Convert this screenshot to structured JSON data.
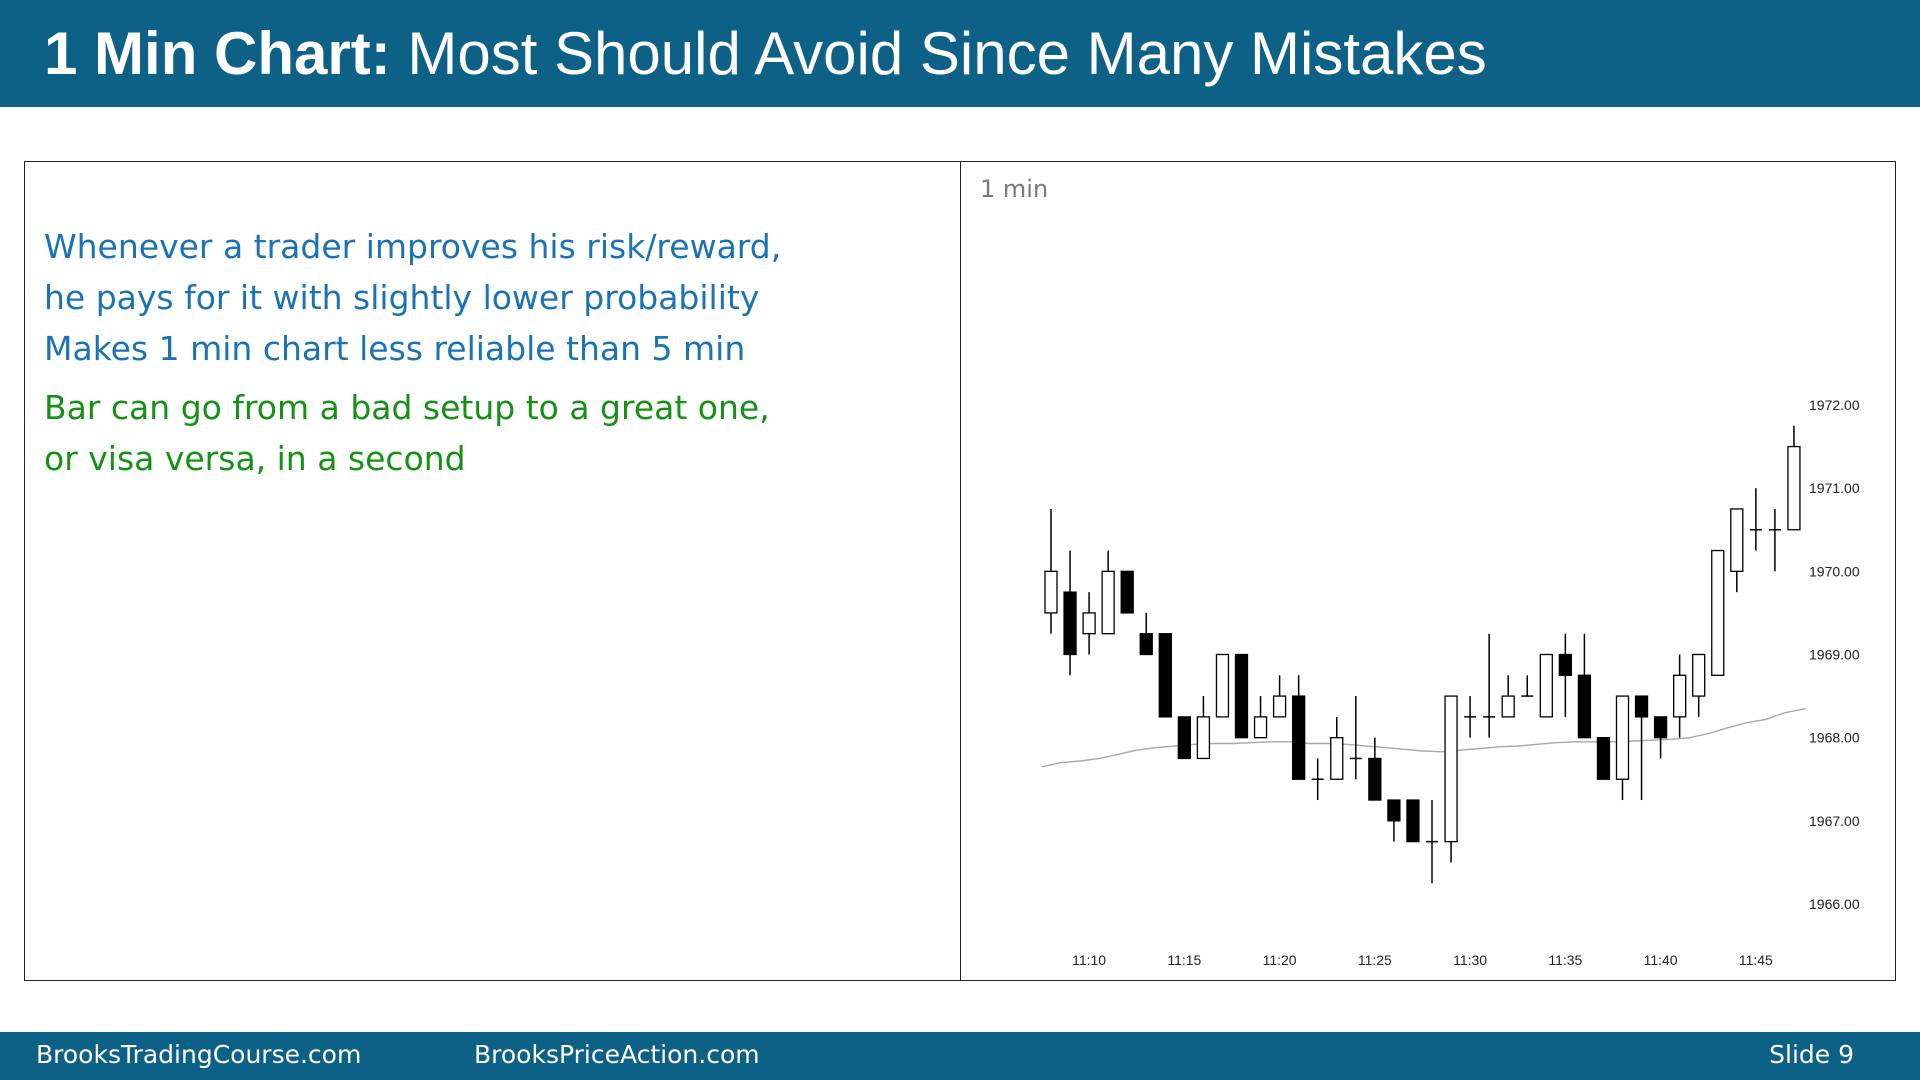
{
  "slide": {
    "title_bold": "1 Min Chart:",
    "title_rest": "Most Should Avoid Since Many Mistakes",
    "blue_lines": [
      "Whenever a trader improves his risk/reward,",
      "he pays for it with slightly lower probability",
      "Makes 1 min chart less reliable than 5 min"
    ],
    "green_lines": [
      "Bar can go from a bad setup to a great one,",
      "or visa versa, in a second"
    ],
    "footer": {
      "site1": "BrooksTradingCourse.com",
      "site2": "BrooksPriceAction.com",
      "slide_number": "Slide  9"
    },
    "colors": {
      "header": "#0e6186",
      "blue_text": "#1a73b4",
      "green_text": "#169116"
    }
  },
  "chart_data": {
    "type": "candlestick",
    "timeframe_label": "1 min",
    "y_ticks": [
      "1966.00",
      "1967.00",
      "1968.00",
      "1969.00",
      "1970.00",
      "1971.00",
      "1972.00"
    ],
    "x_ticks": [
      "11:10",
      "11:15",
      "11:20",
      "11:25",
      "11:30",
      "11:35",
      "11:40",
      "11:45"
    ],
    "ylim": [
      1965.5,
      1972.4
    ],
    "bars": [
      {
        "o": 1969.5,
        "h": 1970.75,
        "l": 1969.25,
        "c": 1970.0
      },
      {
        "o": 1969.75,
        "h": 1970.25,
        "l": 1968.75,
        "c": 1969.0
      },
      {
        "o": 1969.25,
        "h": 1969.75,
        "l": 1969.0,
        "c": 1969.5
      },
      {
        "o": 1969.25,
        "h": 1970.25,
        "l": 1969.25,
        "c": 1970.0
      },
      {
        "o": 1970.0,
        "h": 1970.0,
        "l": 1969.5,
        "c": 1969.5
      },
      {
        "o": 1969.25,
        "h": 1969.5,
        "l": 1969.0,
        "c": 1969.0
      },
      {
        "o": 1969.25,
        "h": 1969.25,
        "l": 1968.25,
        "c": 1968.25
      },
      {
        "o": 1968.25,
        "h": 1968.25,
        "l": 1967.75,
        "c": 1967.75
      },
      {
        "o": 1967.75,
        "h": 1968.5,
        "l": 1967.75,
        "c": 1968.25
      },
      {
        "o": 1968.25,
        "h": 1969.0,
        "l": 1968.25,
        "c": 1969.0
      },
      {
        "o": 1969.0,
        "h": 1969.0,
        "l": 1968.0,
        "c": 1968.0
      },
      {
        "o": 1968.0,
        "h": 1968.5,
        "l": 1968.0,
        "c": 1968.25
      },
      {
        "o": 1968.25,
        "h": 1968.75,
        "l": 1968.25,
        "c": 1968.5
      },
      {
        "o": 1968.5,
        "h": 1968.75,
        "l": 1967.5,
        "c": 1967.5
      },
      {
        "o": 1967.5,
        "h": 1967.75,
        "l": 1967.25,
        "c": 1967.5
      },
      {
        "o": 1967.5,
        "h": 1968.25,
        "l": 1967.5,
        "c": 1968.0
      },
      {
        "o": 1967.75,
        "h": 1968.5,
        "l": 1967.5,
        "c": 1967.75
      },
      {
        "o": 1967.75,
        "h": 1968.0,
        "l": 1967.25,
        "c": 1967.25
      },
      {
        "o": 1967.25,
        "h": 1967.25,
        "l": 1966.75,
        "c": 1967.0
      },
      {
        "o": 1967.25,
        "h": 1967.25,
        "l": 1966.75,
        "c": 1966.75
      },
      {
        "o": 1966.75,
        "h": 1967.25,
        "l": 1966.25,
        "c": 1966.75
      },
      {
        "o": 1966.75,
        "h": 1968.5,
        "l": 1966.5,
        "c": 1968.5
      },
      {
        "o": 1968.25,
        "h": 1968.5,
        "l": 1968.0,
        "c": 1968.25
      },
      {
        "o": 1968.25,
        "h": 1969.25,
        "l": 1968.0,
        "c": 1968.25
      },
      {
        "o": 1968.25,
        "h": 1968.75,
        "l": 1968.25,
        "c": 1968.5
      },
      {
        "o": 1968.5,
        "h": 1968.75,
        "l": 1968.5,
        "c": 1968.5
      },
      {
        "o": 1968.25,
        "h": 1969.0,
        "l": 1968.25,
        "c": 1969.0
      },
      {
        "o": 1969.0,
        "h": 1969.25,
        "l": 1968.25,
        "c": 1968.75
      },
      {
        "o": 1968.75,
        "h": 1969.25,
        "l": 1968.0,
        "c": 1968.0
      },
      {
        "o": 1968.0,
        "h": 1968.0,
        "l": 1967.5,
        "c": 1967.5
      },
      {
        "o": 1967.5,
        "h": 1968.5,
        "l": 1967.25,
        "c": 1968.5
      },
      {
        "o": 1968.5,
        "h": 1968.5,
        "l": 1967.25,
        "c": 1968.25
      },
      {
        "o": 1968.25,
        "h": 1968.25,
        "l": 1967.75,
        "c": 1968.0
      },
      {
        "o": 1968.25,
        "h": 1969.0,
        "l": 1968.0,
        "c": 1968.75
      },
      {
        "o": 1968.5,
        "h": 1969.0,
        "l": 1968.25,
        "c": 1969.0
      },
      {
        "o": 1968.75,
        "h": 1970.25,
        "l": 1968.75,
        "c": 1970.25
      },
      {
        "o": 1970.0,
        "h": 1970.75,
        "l": 1969.75,
        "c": 1970.75
      },
      {
        "o": 1970.5,
        "h": 1971.0,
        "l": 1970.25,
        "c": 1970.5
      },
      {
        "o": 1970.5,
        "h": 1970.75,
        "l": 1970.0,
        "c": 1970.5
      },
      {
        "o": 1970.5,
        "h": 1971.75,
        "l": 1970.5,
        "c": 1971.5
      }
    ],
    "moving_average": [
      1967.65,
      1967.7,
      1967.72,
      1967.75,
      1967.8,
      1967.85,
      1967.88,
      1967.9,
      1967.92,
      1967.93,
      1967.93,
      1967.94,
      1967.95,
      1967.95,
      1967.93,
      1967.93,
      1967.92,
      1967.9,
      1967.88,
      1967.86,
      1967.84,
      1967.83,
      1967.85,
      1967.87,
      1967.89,
      1967.9,
      1967.92,
      1967.94,
      1967.95,
      1967.95,
      1967.95,
      1967.96,
      1967.97,
      1967.98,
      1968.0,
      1968.05,
      1968.12,
      1968.18,
      1968.22,
      1968.3
    ]
  }
}
